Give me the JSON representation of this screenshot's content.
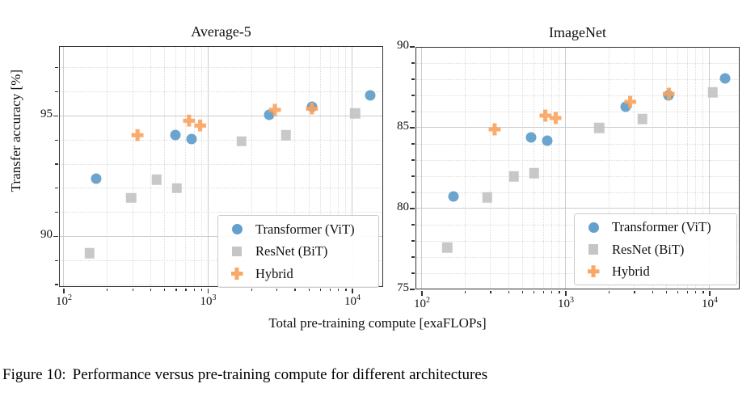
{
  "shared": {
    "ylabel": "Transfer accuracy [%]",
    "xlabel": "Total pre-training compute [exaFLOPs]"
  },
  "caption": {
    "label": "Figure 10:",
    "text": "Performance versus pre-training compute for different architectures"
  },
  "colors": {
    "transformer_blue": "#5b9bc9",
    "resnet_gray": "#c2c2c2",
    "hybrid_orange": "#f8a35e",
    "grid_major": "#cccccc",
    "grid_minor": "#dcdcdc",
    "spine": "#333333"
  },
  "legend": {
    "items": [
      {
        "label": "Transformer (ViT)",
        "marker": "circle",
        "color": "#5b9bc9"
      },
      {
        "label": "ResNet (BiT)",
        "marker": "square",
        "color": "#c2c2c2"
      },
      {
        "label": "Hybrid",
        "marker": "plus",
        "color": "#f8a35e"
      }
    ]
  },
  "chart_data": [
    {
      "type": "scatter",
      "title": "Average-5",
      "xscale": "log",
      "xlabel": "Total pre-training compute [exaFLOPs]",
      "ylabel": "Transfer accuracy [%]",
      "xlim": [
        93,
        16300
      ],
      "ylim": [
        87.9,
        97.9
      ],
      "grid": true,
      "legend_position": "lower right",
      "xticks": [
        {
          "value": 100,
          "base": "10",
          "exp": "2"
        },
        {
          "value": 1000,
          "base": "10",
          "exp": "3"
        },
        {
          "value": 10000,
          "base": "10",
          "exp": "4"
        }
      ],
      "yticks": [
        {
          "value": 90,
          "label": "90"
        },
        {
          "value": 95,
          "label": "95"
        }
      ],
      "series": [
        {
          "name": "Transformer (ViT)",
          "marker": "circle",
          "color": "#5b9bc9",
          "points": [
            [
              168,
              92.4
            ],
            [
              596,
              94.2
            ],
            [
              766,
              94.05
            ],
            [
              2640,
              95.05
            ],
            [
              5230,
              95.4
            ],
            [
              13300,
              95.85
            ]
          ]
        },
        {
          "name": "ResNet (BiT)",
          "marker": "square",
          "color": "#c2c2c2",
          "points": [
            [
              151,
              89.3
            ],
            [
              292,
              91.6
            ],
            [
              438,
              92.35
            ],
            [
              605,
              92.0
            ],
            [
              1700,
              93.95
            ],
            [
              3460,
              94.2
            ],
            [
              10400,
              95.1
            ]
          ]
        },
        {
          "name": "Hybrid",
          "marker": "plus",
          "color": "#f8a35e",
          "points": [
            [
              324,
              94.2
            ],
            [
              737,
              94.8
            ],
            [
              880,
              94.6
            ],
            [
              2900,
              95.25
            ],
            [
              5230,
              95.3
            ]
          ]
        }
      ]
    },
    {
      "type": "scatter",
      "title": "ImageNet",
      "xscale": "log",
      "xlabel": "Total pre-training compute [exaFLOPs]",
      "ylabel": "Transfer accuracy [%]",
      "xlim": [
        90,
        16100
      ],
      "ylim": [
        75,
        90
      ],
      "grid": true,
      "legend_position": "lower right",
      "xticks": [
        {
          "value": 100,
          "base": "10",
          "exp": "2"
        },
        {
          "value": 1000,
          "base": "10",
          "exp": "3"
        },
        {
          "value": 10000,
          "base": "10",
          "exp": "4"
        }
      ],
      "yticks": [
        {
          "value": 75,
          "label": "75"
        },
        {
          "value": 80,
          "label": "80"
        },
        {
          "value": 85,
          "label": "85"
        },
        {
          "value": 90,
          "label": "90"
        }
      ],
      "series": [
        {
          "name": "Transformer (ViT)",
          "marker": "circle",
          "color": "#5b9bc9",
          "points": [
            [
              165,
              80.75
            ],
            [
              575,
              84.4
            ],
            [
              740,
              84.2
            ],
            [
              2600,
              86.3
            ],
            [
              5200,
              87.0
            ],
            [
              12800,
              88.05
            ]
          ]
        },
        {
          "name": "ResNet (BiT)",
          "marker": "square",
          "color": "#c2c2c2",
          "points": [
            [
              150,
              77.6
            ],
            [
              285,
              80.7
            ],
            [
              435,
              82.0
            ],
            [
              600,
              82.2
            ],
            [
              1700,
              85.0
            ],
            [
              3400,
              85.55
            ],
            [
              10500,
              87.2
            ]
          ]
        },
        {
          "name": "Hybrid",
          "marker": "plus",
          "color": "#f8a35e",
          "points": [
            [
              320,
              84.9
            ],
            [
              720,
              85.75
            ],
            [
              850,
              85.6
            ],
            [
              2800,
              86.6
            ],
            [
              5200,
              87.1
            ]
          ]
        }
      ]
    }
  ]
}
